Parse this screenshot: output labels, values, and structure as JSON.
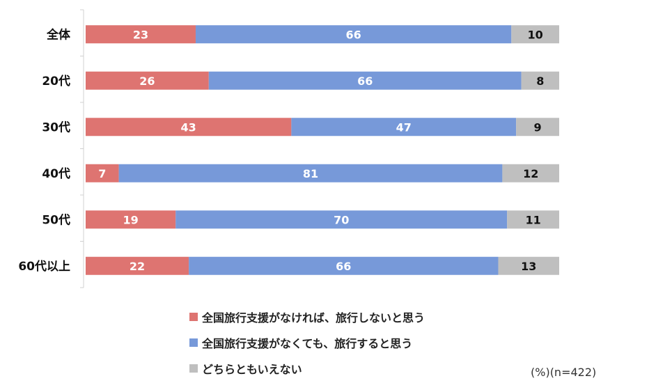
{
  "chart_data": {
    "type": "bar",
    "orientation": "horizontal",
    "stacked": true,
    "categories": [
      "全体",
      "20代",
      "30代",
      "40代",
      "50代",
      "60代以上"
    ],
    "series": [
      {
        "name": "全国旅行支援がなければ、旅行しないと思う",
        "color": "#DE7471",
        "values": [
          23,
          26,
          43,
          7,
          19,
          22
        ]
      },
      {
        "name": "全国旅行支援がなくても、旅行すると思う",
        "color": "#7799D9",
        "values": [
          66,
          66,
          47,
          81,
          70,
          66
        ]
      },
      {
        "name": "どちらともいえない",
        "color": "#BFBFBF",
        "values": [
          10,
          8,
          9,
          12,
          11,
          13
        ]
      }
    ],
    "xlim": [
      0,
      100
    ],
    "grid": false,
    "legend_position": "bottom",
    "note": "(%)(n=422)"
  }
}
